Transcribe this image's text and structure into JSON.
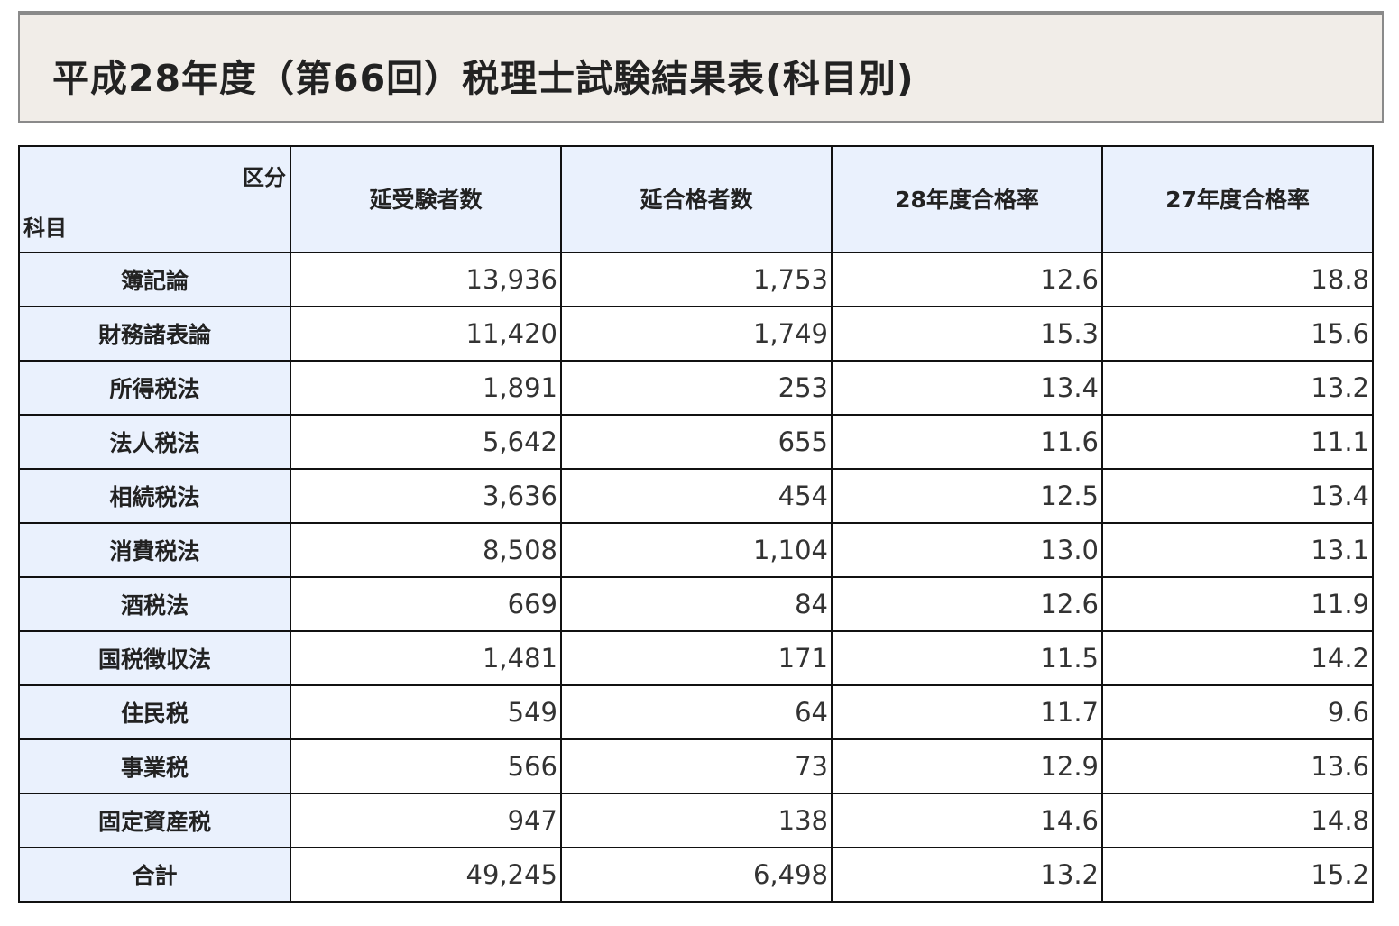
{
  "title": "平成28年度（第66回）税理士試験結果表(科目別)",
  "table": {
    "corner_top": "区分",
    "corner_bottom": "科目",
    "headers": [
      "延受験者数",
      "延合格者数",
      "28年度合格率",
      "27年度合格率"
    ],
    "rows": [
      {
        "subject": "簿記論",
        "cells": [
          "13,936",
          "1,753",
          "12.6",
          "18.8"
        ]
      },
      {
        "subject": "財務諸表論",
        "cells": [
          "11,420",
          "1,749",
          "15.3",
          "15.6"
        ]
      },
      {
        "subject": "所得税法",
        "cells": [
          "1,891",
          "253",
          "13.4",
          "13.2"
        ]
      },
      {
        "subject": "法人税法",
        "cells": [
          "5,642",
          "655",
          "11.6",
          "11.1"
        ]
      },
      {
        "subject": "相続税法",
        "cells": [
          "3,636",
          "454",
          "12.5",
          "13.4"
        ]
      },
      {
        "subject": "消費税法",
        "cells": [
          "8,508",
          "1,104",
          "13.0",
          "13.1"
        ]
      },
      {
        "subject": "酒税法",
        "cells": [
          "669",
          "84",
          "12.6",
          "11.9"
        ]
      },
      {
        "subject": "国税徴収法",
        "cells": [
          "1,481",
          "171",
          "11.5",
          "14.2"
        ]
      },
      {
        "subject": "住民税",
        "cells": [
          "549",
          "64",
          "11.7",
          "9.6"
        ]
      },
      {
        "subject": "事業税",
        "cells": [
          "566",
          "73",
          "12.9",
          "13.6"
        ]
      },
      {
        "subject": "固定資産税",
        "cells": [
          "947",
          "138",
          "14.6",
          "14.8"
        ]
      },
      {
        "subject": "合計",
        "cells": [
          "49,245",
          "6,498",
          "13.2",
          "15.2"
        ]
      }
    ]
  }
}
